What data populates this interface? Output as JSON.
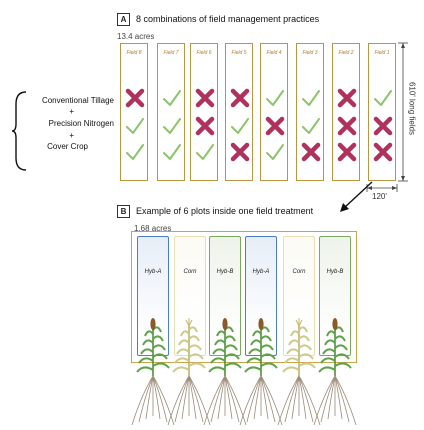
{
  "panel_a": {
    "letter": "A",
    "title": "8 combinations of field management practices",
    "acres": "13.4 acres",
    "length_label": "610' long fields",
    "width_label": "120'",
    "fields": [
      {
        "label": "Field 8",
        "marks": [
          "x",
          "check",
          "check"
        ]
      },
      {
        "label": "Field 7",
        "marks": [
          "check",
          "check",
          "check"
        ]
      },
      {
        "label": "Field 6",
        "marks": [
          "x",
          "x",
          "check"
        ]
      },
      {
        "label": "Field 5",
        "marks": [
          "x",
          "check",
          "x"
        ]
      },
      {
        "label": "Field 4",
        "marks": [
          "check",
          "x",
          "check"
        ]
      },
      {
        "label": "Field 3",
        "marks": [
          "check",
          "check",
          "x"
        ]
      },
      {
        "label": "Field 2",
        "marks": [
          "x",
          "x",
          "x"
        ]
      },
      {
        "label": "Field 1",
        "marks": [
          "check",
          "x",
          "x"
        ]
      }
    ],
    "legend": {
      "practice1": "Conventional Tillage",
      "plus1": "+",
      "practice2": "Precision Nitrogen",
      "plus2": "+",
      "practice3": "Cover Crop"
    }
  },
  "panel_b": {
    "letter": "B",
    "title": "Example of 6 plots inside one field treatment",
    "acres": "1.68 acres",
    "plots": [
      {
        "label": "Hyb-A",
        "kind": "hybrid",
        "color": "#4a7fc8"
      },
      {
        "label": "Corn",
        "kind": "corn",
        "color": "#e7dfb3"
      },
      {
        "label": "Hyb-B",
        "kind": "hybrid",
        "color": "#7aa860"
      },
      {
        "label": "Hyb-A",
        "kind": "hybrid",
        "color": "#4a7fc8"
      },
      {
        "label": "Corn",
        "kind": "corn",
        "color": "#e7dfb3"
      },
      {
        "label": "Hyb-B",
        "kind": "hybrid",
        "color": "#7aa860"
      }
    ]
  },
  "colors": {
    "field_border": "#b9963f",
    "check": "#8cc46b",
    "x": "#b0325c",
    "plot_border": "#c9a44a"
  }
}
